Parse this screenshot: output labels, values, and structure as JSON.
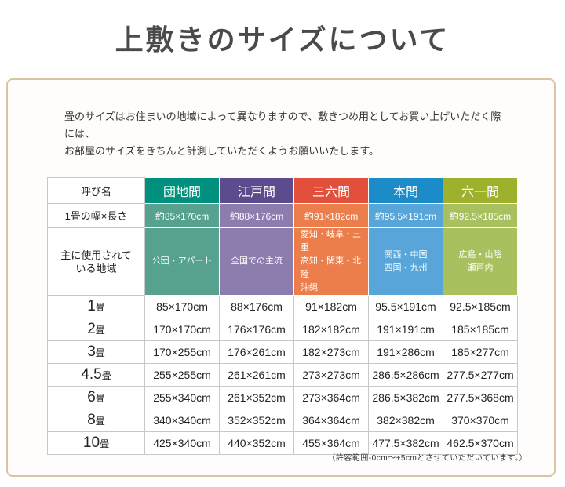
{
  "page": {
    "title": "上敷きのサイズについて",
    "intro_line1": "畳のサイズはお住まいの地域によって異なりますので、敷きつめ用としてお買い上げいただく際には、",
    "intro_line2": "お部屋のサイズをきちんと計測していただくようお願いいたします。",
    "note": "（許容範囲-0cm～+5cmとさせていただいています。）",
    "box_border_color": "#d9c5a3"
  },
  "table": {
    "corner_label": "呼び名",
    "width_row": {
      "label": "1畳の幅×長さ",
      "values": [
        "約85×170cm",
        "約88×176cm",
        "約91×182cm",
        "約95.5×191cm",
        "約92.5×185cm"
      ]
    },
    "region_row": {
      "label_line1": "主に使用されて",
      "label_line2": "いる地域"
    },
    "columns": [
      {
        "name": "団地間",
        "header_color": "#00917e",
        "body_color": "#56a28e",
        "region_lines": [
          "公団・アパート"
        ]
      },
      {
        "name": "江戸間",
        "header_color": "#5c4b8d",
        "body_color": "#8d7cae",
        "region_lines": [
          "全国での主流"
        ]
      },
      {
        "name": "三六間",
        "header_color": "#e2503b",
        "body_color": "#ec7e4b",
        "region_lines": [
          "愛知・岐阜・三重",
          "高知・関東・北陸",
          "沖縄"
        ]
      },
      {
        "name": "本間",
        "header_color": "#1b8cc7",
        "body_color": "#58a6d9",
        "region_lines": [
          "関西・中国",
          "四国・九州"
        ]
      },
      {
        "name": "六一間",
        "header_color": "#9fb02c",
        "body_color": "#a9c05e",
        "region_lines": [
          "広島・山陰",
          "瀬戸内"
        ]
      }
    ],
    "size_rows": [
      {
        "label_number": "1",
        "label_unit": "畳",
        "values": [
          "85×170cm",
          "88×176cm",
          "91×182cm",
          "95.5×191cm",
          "92.5×185cm"
        ]
      },
      {
        "label_number": "2",
        "label_unit": "畳",
        "values": [
          "170×170cm",
          "176×176cm",
          "182×182cm",
          "191×191cm",
          "185×185cm"
        ]
      },
      {
        "label_number": "3",
        "label_unit": "畳",
        "values": [
          "170×255cm",
          "176×261cm",
          "182×273cm",
          "191×286cm",
          "185×277cm"
        ]
      },
      {
        "label_number": "4.5",
        "label_unit": "畳",
        "values": [
          "255×255cm",
          "261×261cm",
          "273×273cm",
          "286.5×286cm",
          "277.5×277cm"
        ]
      },
      {
        "label_number": "6",
        "label_unit": "畳",
        "values": [
          "255×340cm",
          "261×352cm",
          "273×364cm",
          "286.5×382cm",
          "277.5×368cm"
        ]
      },
      {
        "label_number": "8",
        "label_unit": "畳",
        "values": [
          "340×340cm",
          "352×352cm",
          "364×364cm",
          "382×382cm",
          "370×370cm"
        ]
      },
      {
        "label_number": "10",
        "label_unit": "畳",
        "values": [
          "425×340cm",
          "440×352cm",
          "455×364cm",
          "477.5×382cm",
          "462.5×370cm"
        ]
      }
    ]
  }
}
